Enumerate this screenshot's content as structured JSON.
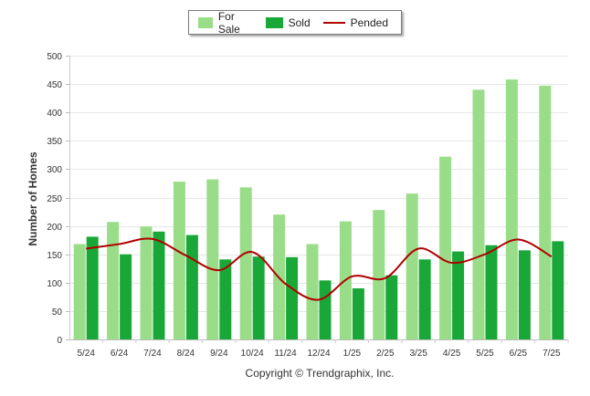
{
  "chart_data": {
    "type": "bar",
    "categories": [
      "5/24",
      "6/24",
      "7/24",
      "8/24",
      "9/24",
      "10/24",
      "11/24",
      "12/24",
      "1/25",
      "2/25",
      "3/25",
      "4/25",
      "5/25",
      "6/25",
      "7/25"
    ],
    "series": [
      {
        "name": "For Sale",
        "kind": "bar",
        "color": "#99dd88",
        "values": [
          168,
          207,
          199,
          278,
          282,
          268,
          220,
          168,
          208,
          228,
          257,
          322,
          440,
          458,
          447
        ]
      },
      {
        "name": "Sold",
        "kind": "bar",
        "color": "#19a838",
        "values": [
          181,
          150,
          190,
          184,
          141,
          146,
          145,
          104,
          90,
          113,
          141,
          155,
          166,
          157,
          173
        ]
      },
      {
        "name": "Pended",
        "kind": "line",
        "color": "#b00000",
        "values": [
          160,
          168,
          177,
          148,
          122,
          154,
          98,
          70,
          111,
          108,
          160,
          135,
          150,
          176,
          146
        ]
      }
    ],
    "yticks": [
      0,
      50,
      100,
      150,
      200,
      250,
      300,
      350,
      400,
      450,
      500
    ],
    "ylim": [
      0,
      500
    ],
    "xlabel": "",
    "ylabel": "Number of Homes",
    "grid": true,
    "legend": "top-center"
  },
  "copyright": "Copyright © Trendgraphix, Inc."
}
